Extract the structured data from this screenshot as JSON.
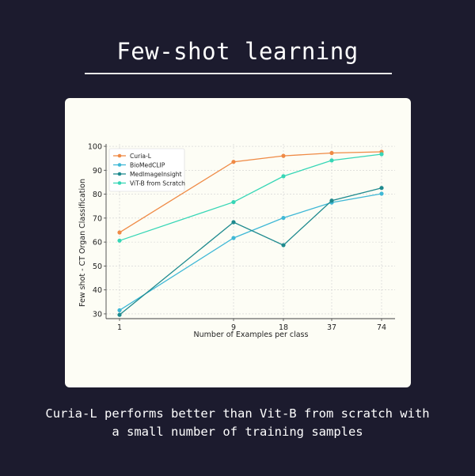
{
  "header": {
    "title": "Few-shot learning"
  },
  "caption": {
    "line1": "Curia-L performs better than Vit-B from scratch with",
    "line2": "a small number of training samples"
  },
  "chart_data": {
    "type": "line",
    "title": "",
    "xlabel": "Number of Examples per class",
    "ylabel": "Few shot - CT Organ Classification",
    "x": [
      1,
      9,
      18,
      37,
      74
    ],
    "x_tick_labels": [
      "1",
      "9",
      "18",
      "37",
      "74"
    ],
    "x_scale": "categorical",
    "ylim": [
      28,
      101
    ],
    "y_ticks": [
      30,
      40,
      50,
      60,
      70,
      80,
      90,
      100
    ],
    "grid": true,
    "legend_position": "top-left",
    "series": [
      {
        "name": "Curia-L",
        "color": "#ef8a45",
        "values": [
          64,
          93.5,
          96,
          97.2,
          97.7
        ]
      },
      {
        "name": "BioMedCLIP",
        "color": "#3fb8d6",
        "values": [
          31.5,
          61.7,
          70.1,
          76.5,
          80.2
        ]
      },
      {
        "name": "MedImageInsight",
        "color": "#1e8a8e",
        "values": [
          29.6,
          68.3,
          58.7,
          77.3,
          82.6
        ]
      },
      {
        "name": "ViT-B from Scratch",
        "color": "#36d6b6",
        "values": [
          60.6,
          76.7,
          87.5,
          94.1,
          96.7
        ]
      }
    ]
  }
}
